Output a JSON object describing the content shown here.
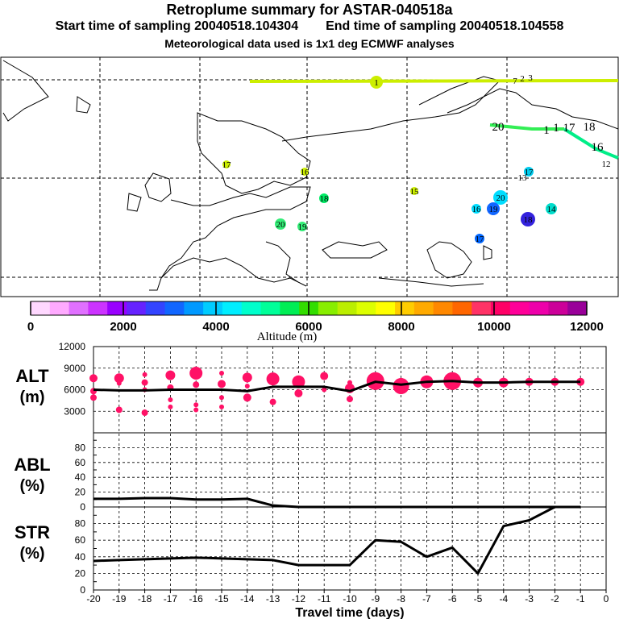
{
  "header": {
    "title": "Retroplume summary for ASTAR-040518a",
    "start": "Start time of sampling 20040518.104304",
    "end": "End time of sampling 20040518.104558",
    "met": "Meteorological data used is 1x1 deg ECMWF analyses"
  },
  "map": {
    "markers": [
      {
        "label": "1",
        "color": "#ccee00"
      },
      {
        "label": "17",
        "color": "#ccee00"
      },
      {
        "label": "16",
        "color": "#ccee00"
      },
      {
        "label": "18",
        "color": "#00ee66"
      },
      {
        "label": "15",
        "color": "#ccee00"
      },
      {
        "label": "20",
        "color": "#33ee77"
      },
      {
        "label": "19",
        "color": "#33ee77"
      },
      {
        "label": "20",
        "color": "#00ddff"
      },
      {
        "label": "16",
        "color": "#00ddff"
      },
      {
        "label": "19",
        "color": "#1166ff"
      },
      {
        "label": "18",
        "color": "#3322dd"
      },
      {
        "label": "14",
        "color": "#00ddcc"
      },
      {
        "label": "17",
        "color": "#00ccee"
      },
      {
        "label": "17",
        "color": "#0066ff"
      }
    ],
    "track_labels": [
      "20",
      "1",
      "1",
      "17",
      "18",
      "16",
      "12",
      "13",
      "7",
      "2",
      "3"
    ]
  },
  "colorbar": {
    "colors": [
      "#ffd8ff",
      "#ffaaff",
      "#e070ff",
      "#cc33ff",
      "#9900ff",
      "#6622ff",
      "#3344ff",
      "#1166ff",
      "#0099ff",
      "#00ccff",
      "#00eeff",
      "#00ffcc",
      "#00ff99",
      "#00ee55",
      "#33dd00",
      "#88ee00",
      "#bbee00",
      "#ddff00",
      "#ffff00",
      "#ffcc00",
      "#ffaa00",
      "#ff8800",
      "#ff6600",
      "#ff3366",
      "#ff0066",
      "#ff0099",
      "#ee00aa",
      "#cc0099",
      "#990099"
    ],
    "ticks": [
      "0",
      "2000",
      "4000",
      "6000",
      "8000",
      "10000",
      "12000"
    ],
    "label": "Altitude (m)"
  },
  "panels": {
    "alt": {
      "label1": "ALT",
      "label2": "(m)",
      "ticks": [
        "12000",
        "9000",
        "6000",
        "3000"
      ]
    },
    "abl": {
      "label1": "ABL",
      "label2": "(%)",
      "ticks": [
        "80",
        "60",
        "40",
        "20",
        "0"
      ]
    },
    "str": {
      "label1": "STR",
      "label2": "(%)",
      "ticks": [
        "80",
        "60",
        "40",
        "20",
        "0"
      ]
    }
  },
  "xaxis": {
    "ticks": [
      "-20",
      "-19",
      "-18",
      "-17",
      "-16",
      "-15",
      "-14",
      "-13",
      "-12",
      "-11",
      "-10",
      "-9",
      "-8",
      "-7",
      "-6",
      "-5",
      "-4",
      "-3",
      "-2",
      "-1",
      "0"
    ],
    "label": "Travel time (days)"
  },
  "chart_data": [
    {
      "type": "line",
      "title": "ALT",
      "ylabel": "ALT (m)",
      "ylim": [
        0,
        12000
      ],
      "x": [
        -20,
        -19,
        -18,
        -17,
        -16,
        -15,
        -14,
        -13,
        -12,
        -11,
        -10,
        -9,
        -8,
        -7,
        -6,
        -5,
        -4,
        -3,
        -2,
        -1
      ],
      "series": [
        {
          "name": "Mean altitude",
          "values": [
            6000,
            5900,
            5900,
            6000,
            6000,
            6000,
            5800,
            6400,
            6400,
            6400,
            5800,
            7100,
            6700,
            7100,
            7200,
            7000,
            7000,
            7100,
            7100,
            7100
          ]
        }
      ],
      "scatter": [
        {
          "x": -20,
          "y": 7600,
          "s": 5
        },
        {
          "x": -20,
          "y": 4900,
          "s": 4
        },
        {
          "x": -20,
          "y": 5800,
          "s": 4
        },
        {
          "x": -19,
          "y": 7600,
          "s": 6
        },
        {
          "x": -19,
          "y": 3200,
          "s": 4
        },
        {
          "x": -19,
          "y": 6900,
          "s": 3
        },
        {
          "x": -18,
          "y": 8100,
          "s": 3
        },
        {
          "x": -18,
          "y": 7000,
          "s": 4
        },
        {
          "x": -18,
          "y": 2800,
          "s": 4
        },
        {
          "x": -18,
          "y": 6000,
          "s": 3
        },
        {
          "x": -17,
          "y": 8000,
          "s": 6
        },
        {
          "x": -17,
          "y": 6300,
          "s": 4
        },
        {
          "x": -17,
          "y": 4600,
          "s": 3
        },
        {
          "x": -17,
          "y": 3600,
          "s": 3
        },
        {
          "x": -16,
          "y": 8300,
          "s": 8
        },
        {
          "x": -16,
          "y": 6700,
          "s": 4
        },
        {
          "x": -16,
          "y": 3200,
          "s": 3
        },
        {
          "x": -16,
          "y": 3900,
          "s": 3
        },
        {
          "x": -15,
          "y": 8300,
          "s": 3
        },
        {
          "x": -15,
          "y": 6800,
          "s": 5
        },
        {
          "x": -15,
          "y": 3600,
          "s": 3
        },
        {
          "x": -15,
          "y": 4900,
          "s": 3
        },
        {
          "x": -14,
          "y": 7700,
          "s": 6
        },
        {
          "x": -14,
          "y": 4900,
          "s": 5
        },
        {
          "x": -14,
          "y": 6500,
          "s": 3
        },
        {
          "x": -13,
          "y": 7500,
          "s": 8
        },
        {
          "x": -13,
          "y": 4300,
          "s": 4
        },
        {
          "x": -12,
          "y": 7100,
          "s": 8
        },
        {
          "x": -12,
          "y": 5500,
          "s": 5
        },
        {
          "x": -11,
          "y": 7900,
          "s": 5
        },
        {
          "x": -11,
          "y": 6000,
          "s": 3
        },
        {
          "x": -10,
          "y": 6200,
          "s": 6
        },
        {
          "x": -10,
          "y": 4700,
          "s": 4
        },
        {
          "x": -10,
          "y": 7000,
          "s": 3
        },
        {
          "x": -9,
          "y": 7200,
          "s": 11
        },
        {
          "x": -8,
          "y": 6500,
          "s": 10
        },
        {
          "x": -8,
          "y": 7200,
          "s": 4
        },
        {
          "x": -7,
          "y": 7100,
          "s": 8
        },
        {
          "x": -6,
          "y": 7200,
          "s": 11
        },
        {
          "x": -5,
          "y": 7000,
          "s": 6
        },
        {
          "x": -4,
          "y": 7000,
          "s": 6
        },
        {
          "x": -3,
          "y": 7100,
          "s": 5
        },
        {
          "x": -2,
          "y": 7100,
          "s": 5
        },
        {
          "x": -1,
          "y": 7100,
          "s": 5
        }
      ]
    },
    {
      "type": "line",
      "title": "ABL",
      "ylabel": "ABL (%)",
      "ylim": [
        0,
        100
      ],
      "x": [
        -20,
        -19,
        -18,
        -17,
        -16,
        -15,
        -14,
        -13,
        -12,
        -11,
        -10,
        -9,
        -8,
        -7,
        -6,
        -5,
        -4,
        -3,
        -2,
        -1
      ],
      "series": [
        {
          "name": "ABL",
          "values": [
            11,
            11,
            12,
            12,
            10,
            10,
            11,
            2,
            0,
            0,
            0,
            0,
            0,
            0,
            0,
            0,
            0,
            0,
            0,
            0
          ]
        }
      ]
    },
    {
      "type": "line",
      "title": "STR",
      "ylabel": "STR (%)",
      "xlabel": "Travel time (days)",
      "ylim": [
        0,
        100
      ],
      "x": [
        -20,
        -19,
        -18,
        -17,
        -16,
        -15,
        -14,
        -13,
        -12,
        -11,
        -10,
        -9,
        -8,
        -7,
        -6,
        -5,
        -4,
        -3,
        -2,
        -1
      ],
      "series": [
        {
          "name": "STR",
          "values": [
            35,
            36,
            37,
            38,
            39,
            38,
            37,
            36,
            30,
            30,
            30,
            60,
            58,
            40,
            51,
            20,
            77,
            84,
            100,
            100
          ]
        }
      ]
    }
  ]
}
